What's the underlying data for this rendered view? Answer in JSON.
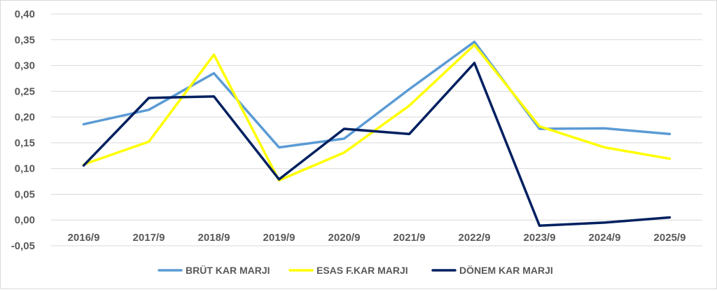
{
  "chart_data": {
    "type": "line",
    "title": "",
    "xlabel": "",
    "ylabel": "",
    "categories": [
      "2016/9",
      "2017/9",
      "2018/9",
      "2019/9",
      "2020/9",
      "2021/9",
      "2022/9",
      "2023/9",
      "2024/9",
      "2025/9"
    ],
    "ylim": [
      -0.05,
      0.4
    ],
    "yticks": [
      "-0,05",
      "0,00",
      "0,05",
      "0,10",
      "0,15",
      "0,20",
      "0,25",
      "0,30",
      "0,35",
      "0,40"
    ],
    "grid": true,
    "legend_position": "bottom",
    "series": [
      {
        "name": "BRÜT KAR MARJI",
        "color": "#5B9BD5",
        "values": [
          0.186,
          0.214,
          0.285,
          0.141,
          0.158,
          0.254,
          0.346,
          0.177,
          0.178,
          0.167
        ]
      },
      {
        "name": "ESAS F.KAR MARJI",
        "color": "#FFFF00",
        "values": [
          0.108,
          0.152,
          0.321,
          0.077,
          0.131,
          0.222,
          0.34,
          0.182,
          0.141,
          0.119
        ]
      },
      {
        "name": "DÖNEM KAR MARJI",
        "color": "#002060",
        "values": [
          0.106,
          0.237,
          0.24,
          0.079,
          0.177,
          0.167,
          0.305,
          -0.011,
          -0.005,
          0.005
        ]
      }
    ]
  }
}
